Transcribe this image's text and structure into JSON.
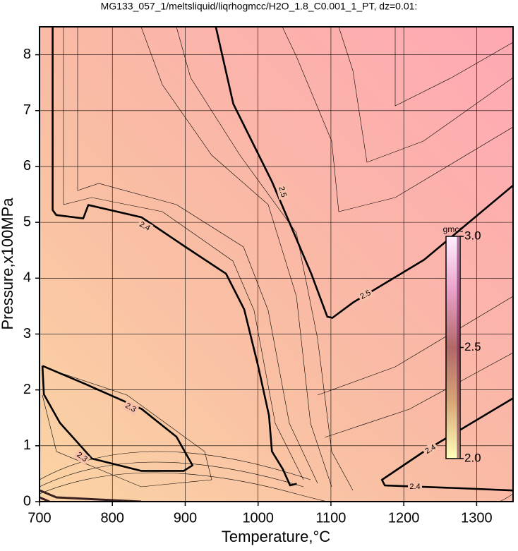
{
  "chart_data": {
    "type": "contour",
    "title": "MG133_057_1/meltsliquid/liqrhogmcc/H2O_1.8_C0.001_1_PT, dz=0.01:",
    "x_label": "Temperature,°C",
    "y_label": "Pressure,x100MPa",
    "xlim": [
      700,
      1350
    ],
    "ylim": [
      0,
      8.5
    ],
    "xticks": [
      700,
      800,
      900,
      1000,
      1100,
      1200,
      1300
    ],
    "yticks": [
      0,
      1,
      2,
      3,
      4,
      5,
      6,
      7,
      8
    ],
    "grid": true,
    "color": "#000000",
    "contours": [
      {
        "level": 2.4,
        "x": [
          718,
          718,
          723,
          760,
          767,
          840,
          898,
          956,
          981,
          1000,
          1015,
          1019,
          1034,
          1044,
          1053
        ],
        "y": [
          8.5,
          5.22,
          5.13,
          5.07,
          5.31,
          5.09,
          4.58,
          4.08,
          3.44,
          2.43,
          1.54,
          0.9,
          0.58,
          0.29,
          0.32
        ]
      },
      {
        "level": 2.5,
        "x": [
          942,
          966,
          1019,
          1073,
          1095,
          1102,
          1131,
          1228,
          1350
        ],
        "y": [
          8.5,
          7.12,
          5.73,
          4.08,
          3.31,
          3.29,
          3.57,
          4.33,
          5.66
        ]
      },
      {
        "level": 2.3,
        "x": [
          704,
          762,
          840,
          888,
          910,
          898,
          840,
          772,
          728,
          706,
          704
        ],
        "y": [
          2.43,
          2.11,
          1.66,
          1.16,
          0.65,
          0.55,
          0.55,
          0.77,
          1.41,
          1.92,
          2.43
        ]
      },
      {
        "level": 2.4,
        "x": [
          1350,
          1228,
          1170,
          1174,
          1277,
          1350
        ],
        "y": [
          1.85,
          0.9,
          0.39,
          0.29,
          0.24,
          0.2
        ]
      }
    ],
    "colorbar": {
      "label": "gmcc",
      "lim": [
        2,
        3
      ],
      "ticks": [
        {
          "value": 2,
          "label": "2.0"
        },
        {
          "value": 2.5,
          "label": "2.5"
        },
        {
          "value": 3,
          "label": "3.0"
        }
      ],
      "colors": [
        "#ffffb8",
        "#d8a878",
        "#b06868",
        "#e8a0c8",
        "#fff0ff"
      ]
    }
  }
}
